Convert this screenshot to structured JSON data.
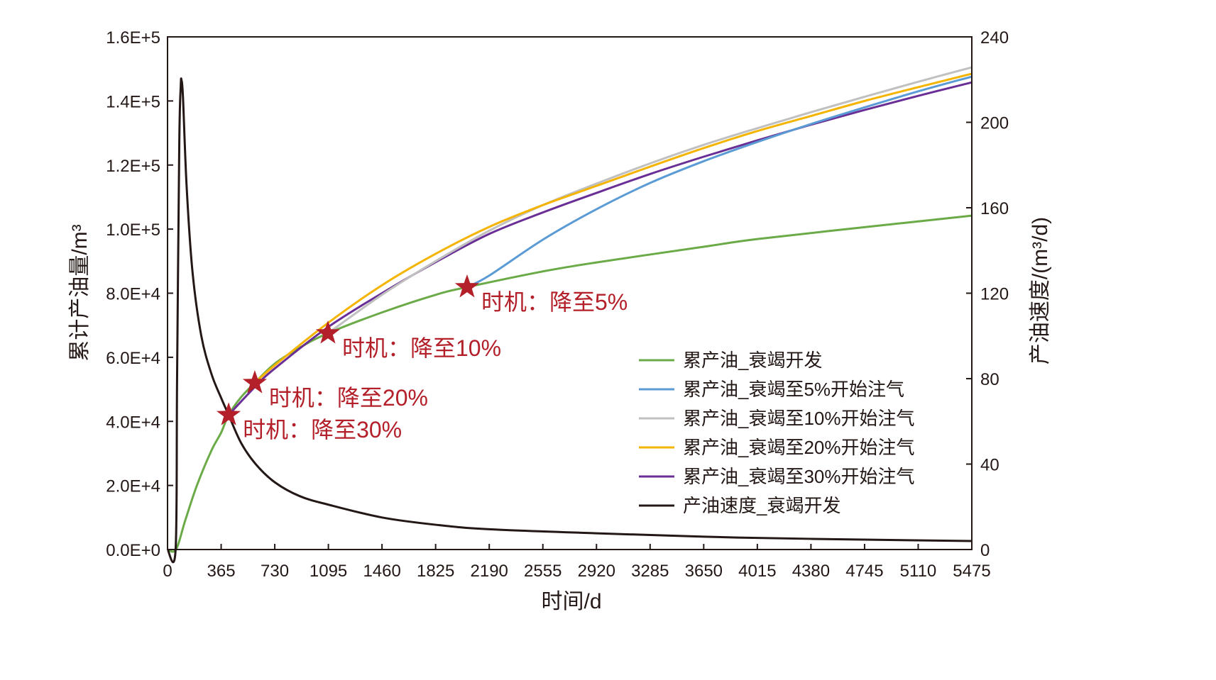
{
  "chart_data": {
    "type": "line",
    "xlabel": "时间/d",
    "ylabel": "累计产油量/m³",
    "ylabel_right": "产油速度/(m³/d)",
    "xlim": [
      0,
      5475
    ],
    "ylim": [
      0,
      160000
    ],
    "ylim_right": [
      0,
      240
    ],
    "x_ticks": [
      0,
      365,
      730,
      1095,
      1460,
      1825,
      2190,
      2555,
      2920,
      3285,
      3650,
      4015,
      4380,
      4745,
      5110,
      5475
    ],
    "x_tick_labels": [
      "0",
      "365",
      "730",
      "1095",
      "1460",
      "1825",
      "2190",
      "2555",
      "2920",
      "3285",
      "3650",
      "4015",
      "4380",
      "4745",
      "5110",
      "5475"
    ],
    "y_ticks": [
      0,
      20000,
      40000,
      60000,
      80000,
      100000,
      120000,
      140000,
      160000
    ],
    "y_tick_labels": [
      "0.0E+0",
      "2.0E+4",
      "4.0E+4",
      "6.0E+4",
      "8.0E+4",
      "1.0E+5",
      "1.2E+5",
      "1.4E+5",
      "1.6E+5"
    ],
    "y_right_ticks": [
      0,
      40,
      80,
      120,
      160,
      200,
      240
    ],
    "y_right_tick_labels": [
      "0",
      "40",
      "80",
      "120",
      "160",
      "200",
      "240"
    ],
    "grid": false,
    "legend_position": "bottom-right",
    "series": [
      {
        "name": "累产油_衰竭开发",
        "color": "#6aab47",
        "axis": "left",
        "x": [
          0,
          58,
          120,
          200,
          300,
          365,
          416,
          500,
          594,
          730,
          900,
          1092,
          1460,
          1825,
          2039,
          2555,
          2920,
          3650,
          4015,
          4745,
          5475
        ],
        "y": [
          0,
          0,
          9000,
          20000,
          31000,
          36500,
          42000,
          47500,
          52000,
          58000,
          63000,
          67500,
          74000,
          79500,
          81900,
          86800,
          89600,
          94500,
          96900,
          100600,
          104200
        ]
      },
      {
        "name": "累产油_衰竭至5%开始注气",
        "color": "#5b9bd5",
        "axis": "left",
        "x": [
          2039,
          2190,
          2555,
          2920,
          3285,
          3650,
          4015,
          4380,
          4745,
          5110,
          5475
        ],
        "y": [
          81900,
          85500,
          96700,
          106200,
          114400,
          121200,
          127200,
          132800,
          138000,
          143000,
          147600
        ]
      },
      {
        "name": "累产油_衰竭至10%开始注气",
        "color": "#c0c0c0",
        "axis": "left",
        "x": [
          1092,
          1460,
          1825,
          2190,
          2555,
          2920,
          3285,
          3650,
          4015,
          4380,
          4745,
          5110,
          5475
        ],
        "y": [
          67500,
          79500,
          90000,
          99500,
          107500,
          114200,
          120500,
          126300,
          131500,
          136500,
          141300,
          146000,
          150500
        ]
      },
      {
        "name": "累产油_衰竭至20%开始注气",
        "color": "#f5b400",
        "axis": "left",
        "x": [
          594,
          730,
          1095,
          1460,
          1825,
          2190,
          2555,
          2920,
          3285,
          3650,
          4015,
          4380,
          4745,
          5110,
          5475
        ],
        "y": [
          52000,
          57500,
          70800,
          82500,
          92300,
          100700,
          107500,
          113500,
          119500,
          125300,
          130600,
          135300,
          140000,
          144300,
          148500
        ]
      },
      {
        "name": "累产油_衰竭至30%开始注气",
        "color": "#6a2f96",
        "axis": "left",
        "x": [
          416,
          600,
          730,
          1095,
          1460,
          1825,
          2190,
          2555,
          2920,
          3285,
          3650,
          4015,
          4380,
          4745,
          5110,
          5475
        ],
        "y": [
          42000,
          51000,
          56500,
          69500,
          80000,
          89700,
          98500,
          105200,
          111300,
          117200,
          122600,
          127700,
          132600,
          137200,
          141600,
          145800
        ]
      },
      {
        "name": "产油速度_衰竭开发",
        "color": "#231815",
        "axis": "right",
        "x": [
          0,
          55,
          65,
          80,
          90,
          95,
          105,
          130,
          170,
          230,
          300,
          365,
          416,
          500,
          600,
          730,
          900,
          1095,
          1460,
          1825,
          2190,
          2920,
          3650,
          4380,
          5475
        ],
        "y": [
          0,
          0,
          80,
          190,
          217,
          219.7,
          212,
          170,
          130,
          100,
          82,
          71,
          63,
          50,
          40,
          31.5,
          25,
          21,
          15,
          11.6,
          9.5,
          7.6,
          6,
          5,
          4
        ]
      }
    ],
    "annotations": [
      {
        "text": "时机：降至5%",
        "x": 2039,
        "y": 81900
      },
      {
        "text": "时机：降至10%",
        "x": 1092,
        "y": 67500
      },
      {
        "text": "时机：降至20%",
        "x": 594,
        "y": 52000
      },
      {
        "text": "时机：降至30%",
        "x": 416,
        "y": 42000
      }
    ],
    "marker_color": "#b3202a"
  }
}
